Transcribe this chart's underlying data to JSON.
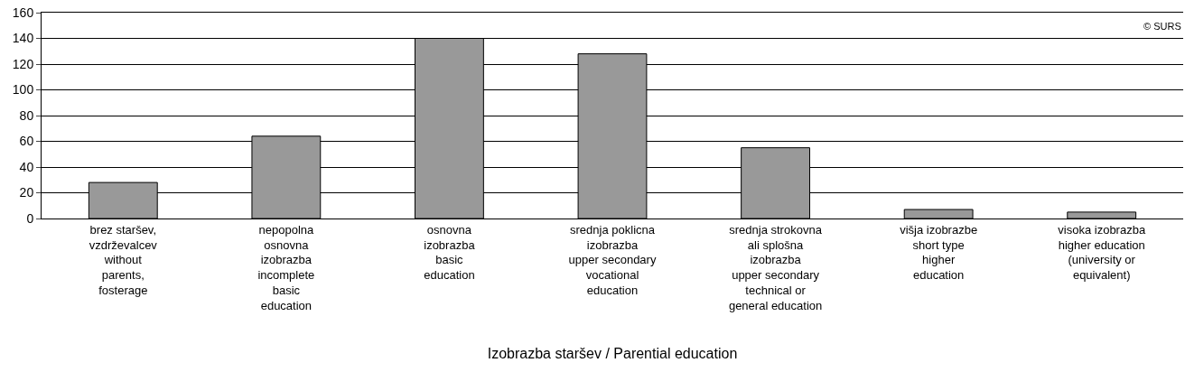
{
  "chart_data": {
    "type": "bar",
    "xlabel": "Izobrazba staršev / Parential education",
    "categories": [
      "brez staršev,\nvzdrževalcev\nwithout\nparents,\nfosterage",
      "nepopolna\nosnovna\nizobrazba\nincomplete\nbasic\neducation",
      "osnovna\nizobrazba\nbasic\neducation",
      "srednja poklicna\nizobrazba\nupper secondary\nvocational\neducation",
      "srednja strokovna\nali splošna\nizobrazba\nupper secondary\ntechnical or\ngeneral education",
      "višja izobrazbe\nshort type\nhigher\neducation",
      "visoka izobrazba\nhigher education\n(university or\nequivalent)"
    ],
    "values": [
      28,
      64,
      140,
      128,
      55,
      7,
      5
    ],
    "color": "#999999",
    "ylim": [
      0,
      160
    ],
    "yticks": [
      0,
      20,
      40,
      60,
      80,
      100,
      120,
      140,
      160
    ],
    "grid": "y",
    "legend": false,
    "annotations": [
      "© SURS"
    ]
  }
}
